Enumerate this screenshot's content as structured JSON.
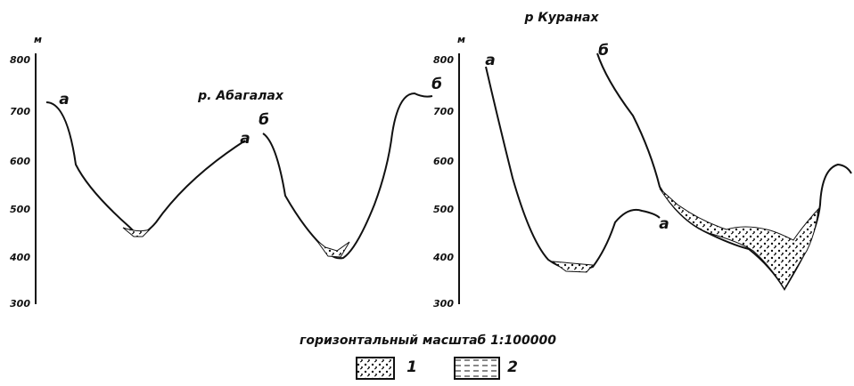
{
  "left_section": {
    "title": "р. Абагалах",
    "unit": "м",
    "ticks": [
      "800",
      "700",
      "600",
      "500",
      "400",
      "300"
    ],
    "labels": [
      "а",
      "а",
      "б",
      "б"
    ]
  },
  "right_section": {
    "title": "р Куранах",
    "unit": "м",
    "ticks": [
      "800",
      "700",
      "600",
      "500",
      "400",
      "300"
    ],
    "labels": [
      "а",
      "а",
      "б"
    ]
  },
  "caption": "горизонтальный масштаб 1:100000",
  "legend": [
    "1",
    "2"
  ]
}
